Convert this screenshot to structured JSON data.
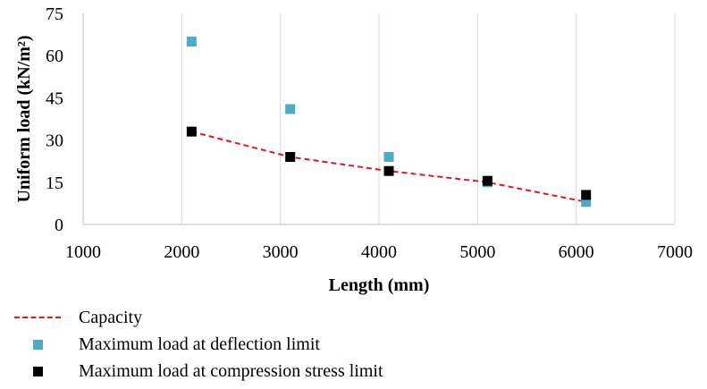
{
  "chart_data": {
    "type": "scatter",
    "title": "",
    "xlabel": "Length (mm)",
    "ylabel": "Uniform load (kN/m²)",
    "xlim": [
      1000,
      7000
    ],
    "ylim": [
      0,
      75
    ],
    "xticks": [
      1000,
      2000,
      3000,
      4000,
      5000,
      6000,
      7000
    ],
    "yticks": [
      0,
      15,
      30,
      45,
      60,
      75
    ],
    "xtick_labels": [
      "1000",
      "2000",
      "3000",
      "4000",
      "5000",
      "6000",
      "7000"
    ],
    "ytick_labels": [
      "0",
      "15",
      "30",
      "45",
      "60",
      "75"
    ],
    "grid": "vertical",
    "legend_position": "bottom",
    "series": [
      {
        "name": "Capacity",
        "kind": "dashed-line",
        "color": "#e8141a",
        "x": [
          2100,
          3100,
          4100,
          5100,
          6100
        ],
        "y": [
          33,
          24,
          19,
          15,
          8
        ]
      },
      {
        "name": "Maximum load at deflection limit",
        "kind": "markers",
        "color": "#4bacc6",
        "x": [
          2100,
          3100,
          4100,
          5100,
          6100
        ],
        "y": [
          65,
          41,
          24,
          15,
          8
        ]
      },
      {
        "name": "Maximum load at compression stress limit",
        "kind": "markers",
        "color": "#000000",
        "x": [
          2100,
          3100,
          4100,
          5100,
          6100
        ],
        "y": [
          33,
          24,
          19,
          15.5,
          10.5
        ]
      }
    ]
  }
}
